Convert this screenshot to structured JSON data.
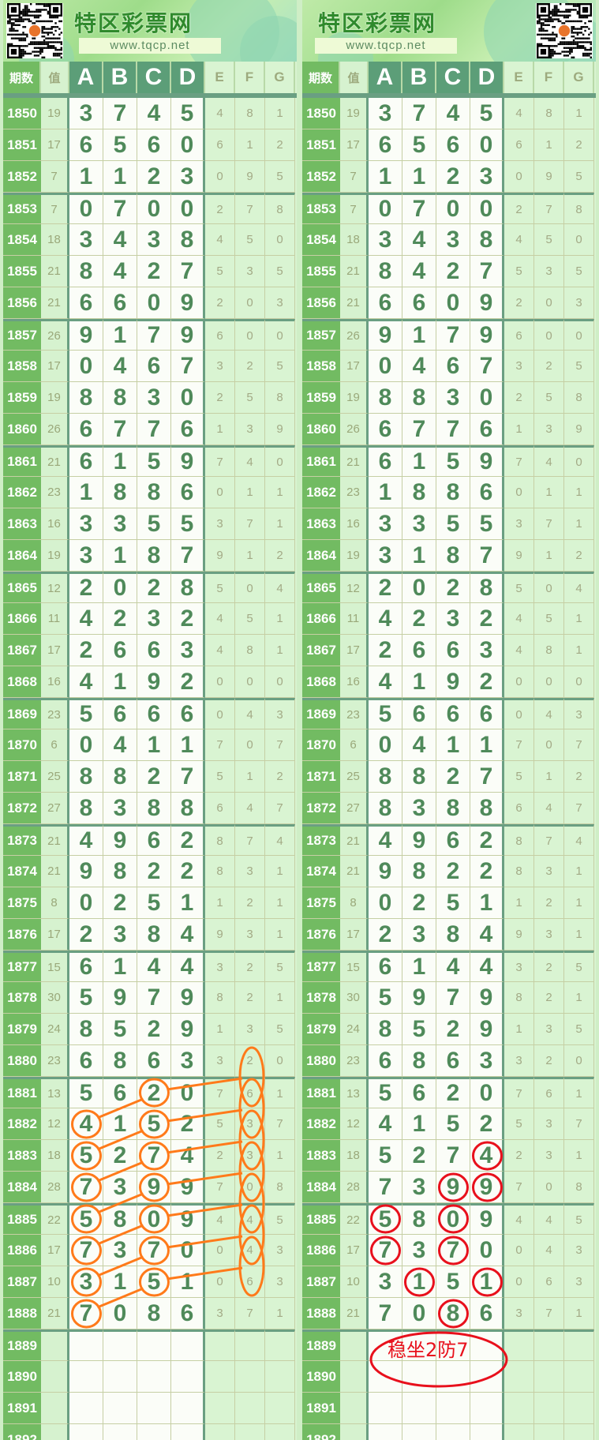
{
  "banner": {
    "title": "特区彩票网",
    "url": "www.tqcp.net"
  },
  "header": {
    "period": "期数",
    "value": "值",
    "main": [
      "A",
      "B",
      "C",
      "D"
    ],
    "extra": [
      "E",
      "F",
      "G"
    ]
  },
  "colors": {
    "period_bg": "#72bb62",
    "main_digit": "#4f8a5a",
    "orange_mark": "#ff7a1a",
    "red_mark": "#e8101c"
  },
  "table": {
    "rows": [
      [
        "1850",
        "19",
        [
          "3",
          "7",
          "4",
          "5"
        ],
        [
          "4",
          "8",
          "1"
        ]
      ],
      [
        "1851",
        "17",
        [
          "6",
          "5",
          "6",
          "0"
        ],
        [
          "6",
          "1",
          "2"
        ]
      ],
      [
        "1852",
        "7",
        [
          "1",
          "1",
          "2",
          "3"
        ],
        [
          "0",
          "9",
          "5"
        ]
      ],
      [
        "1853",
        "7",
        [
          "0",
          "7",
          "0",
          "0"
        ],
        [
          "2",
          "7",
          "8"
        ]
      ],
      [
        "1854",
        "18",
        [
          "3",
          "4",
          "3",
          "8"
        ],
        [
          "4",
          "5",
          "0"
        ]
      ],
      [
        "1855",
        "21",
        [
          "8",
          "4",
          "2",
          "7"
        ],
        [
          "5",
          "3",
          "5"
        ]
      ],
      [
        "1856",
        "21",
        [
          "6",
          "6",
          "0",
          "9"
        ],
        [
          "2",
          "0",
          "3"
        ]
      ],
      [
        "1857",
        "26",
        [
          "9",
          "1",
          "7",
          "9"
        ],
        [
          "6",
          "0",
          "0"
        ]
      ],
      [
        "1858",
        "17",
        [
          "0",
          "4",
          "6",
          "7"
        ],
        [
          "3",
          "2",
          "5"
        ]
      ],
      [
        "1859",
        "19",
        [
          "8",
          "8",
          "3",
          "0"
        ],
        [
          "2",
          "5",
          "8"
        ]
      ],
      [
        "1860",
        "26",
        [
          "6",
          "7",
          "7",
          "6"
        ],
        [
          "1",
          "3",
          "9"
        ]
      ],
      [
        "1861",
        "21",
        [
          "6",
          "1",
          "5",
          "9"
        ],
        [
          "7",
          "4",
          "0"
        ]
      ],
      [
        "1862",
        "23",
        [
          "1",
          "8",
          "8",
          "6"
        ],
        [
          "0",
          "1",
          "1"
        ]
      ],
      [
        "1863",
        "16",
        [
          "3",
          "3",
          "5",
          "5"
        ],
        [
          "3",
          "7",
          "1"
        ]
      ],
      [
        "1864",
        "19",
        [
          "3",
          "1",
          "8",
          "7"
        ],
        [
          "9",
          "1",
          "2"
        ]
      ],
      [
        "1865",
        "12",
        [
          "2",
          "0",
          "2",
          "8"
        ],
        [
          "5",
          "0",
          "4"
        ]
      ],
      [
        "1866",
        "11",
        [
          "4",
          "2",
          "3",
          "2"
        ],
        [
          "4",
          "5",
          "1"
        ]
      ],
      [
        "1867",
        "17",
        [
          "2",
          "6",
          "6",
          "3"
        ],
        [
          "4",
          "8",
          "1"
        ]
      ],
      [
        "1868",
        "16",
        [
          "4",
          "1",
          "9",
          "2"
        ],
        [
          "0",
          "0",
          "0"
        ]
      ],
      [
        "1869",
        "23",
        [
          "5",
          "6",
          "6",
          "6"
        ],
        [
          "0",
          "4",
          "3"
        ]
      ],
      [
        "1870",
        "6",
        [
          "0",
          "4",
          "1",
          "1"
        ],
        [
          "7",
          "0",
          "7"
        ]
      ],
      [
        "1871",
        "25",
        [
          "8",
          "8",
          "2",
          "7"
        ],
        [
          "5",
          "1",
          "2"
        ]
      ],
      [
        "1872",
        "27",
        [
          "8",
          "3",
          "8",
          "8"
        ],
        [
          "6",
          "4",
          "7"
        ]
      ],
      [
        "1873",
        "21",
        [
          "4",
          "9",
          "6",
          "2"
        ],
        [
          "8",
          "7",
          "4"
        ]
      ],
      [
        "1874",
        "21",
        [
          "9",
          "8",
          "2",
          "2"
        ],
        [
          "8",
          "3",
          "1"
        ]
      ],
      [
        "1875",
        "8",
        [
          "0",
          "2",
          "5",
          "1"
        ],
        [
          "1",
          "2",
          "1"
        ]
      ],
      [
        "1876",
        "17",
        [
          "2",
          "3",
          "8",
          "4"
        ],
        [
          "9",
          "3",
          "1"
        ]
      ],
      [
        "1877",
        "15",
        [
          "6",
          "1",
          "4",
          "4"
        ],
        [
          "3",
          "2",
          "5"
        ]
      ],
      [
        "1878",
        "30",
        [
          "5",
          "9",
          "7",
          "9"
        ],
        [
          "8",
          "2",
          "1"
        ]
      ],
      [
        "1879",
        "24",
        [
          "8",
          "5",
          "2",
          "9"
        ],
        [
          "1",
          "3",
          "5"
        ]
      ],
      [
        "1880",
        "23",
        [
          "6",
          "8",
          "6",
          "3"
        ],
        [
          "3",
          "2",
          "0"
        ]
      ],
      [
        "1881",
        "13",
        [
          "5",
          "6",
          "2",
          "0"
        ],
        [
          "7",
          "6",
          "1"
        ]
      ],
      [
        "1882",
        "12",
        [
          "4",
          "1",
          "5",
          "2"
        ],
        [
          "5",
          "3",
          "7"
        ]
      ],
      [
        "1883",
        "18",
        [
          "5",
          "2",
          "7",
          "4"
        ],
        [
          "2",
          "3",
          "1"
        ]
      ],
      [
        "1884",
        "28",
        [
          "7",
          "3",
          "9",
          "9"
        ],
        [
          "7",
          "0",
          "8"
        ]
      ],
      [
        "1885",
        "22",
        [
          "5",
          "8",
          "0",
          "9"
        ],
        [
          "4",
          "4",
          "5"
        ]
      ],
      [
        "1886",
        "17",
        [
          "7",
          "3",
          "7",
          "0"
        ],
        [
          "0",
          "4",
          "3"
        ]
      ],
      [
        "1887",
        "10",
        [
          "3",
          "1",
          "5",
          "1"
        ],
        [
          "0",
          "6",
          "3"
        ]
      ],
      [
        "1888",
        "21",
        [
          "7",
          "0",
          "8",
          "6"
        ],
        [
          "3",
          "7",
          "1"
        ]
      ],
      [
        "1889",
        "",
        [
          "",
          "",
          "",
          ""
        ],
        [
          "",
          "",
          ""
        ]
      ],
      [
        "1890",
        "",
        [
          "",
          "",
          "",
          ""
        ],
        [
          "",
          "",
          ""
        ]
      ],
      [
        "1891",
        "",
        [
          "",
          "",
          "",
          ""
        ],
        [
          "",
          "",
          ""
        ]
      ],
      [
        "1892",
        "",
        [
          "",
          "",
          "",
          ""
        ],
        [
          "",
          "",
          ""
        ]
      ]
    ]
  },
  "annotations": {
    "left_orange_circles": [
      [
        "1881",
        "C"
      ],
      [
        "1882",
        "A"
      ],
      [
        "1882",
        "C"
      ],
      [
        "1883",
        "A"
      ],
      [
        "1883",
        "C"
      ],
      [
        "1884",
        "A"
      ],
      [
        "1884",
        "C"
      ],
      [
        "1885",
        "A"
      ],
      [
        "1885",
        "C"
      ],
      [
        "1886",
        "A"
      ],
      [
        "1886",
        "C"
      ],
      [
        "1887",
        "A"
      ],
      [
        "1887",
        "C"
      ],
      [
        "1888",
        "A"
      ]
    ],
    "left_orange_f_ellipses": [
      "1880",
      "1881",
      "1882",
      "1883",
      "1884",
      "1885",
      "1886"
    ],
    "right_red_circles": [
      [
        "1883",
        "D"
      ],
      [
        "1884",
        "C"
      ],
      [
        "1884",
        "D"
      ],
      [
        "1885",
        "A"
      ],
      [
        "1885",
        "C"
      ],
      [
        "1886",
        "A"
      ],
      [
        "1886",
        "C"
      ],
      [
        "1887",
        "B"
      ],
      [
        "1887",
        "D"
      ],
      [
        "1888",
        "C"
      ]
    ],
    "prediction_text": "稳坐2防7"
  }
}
